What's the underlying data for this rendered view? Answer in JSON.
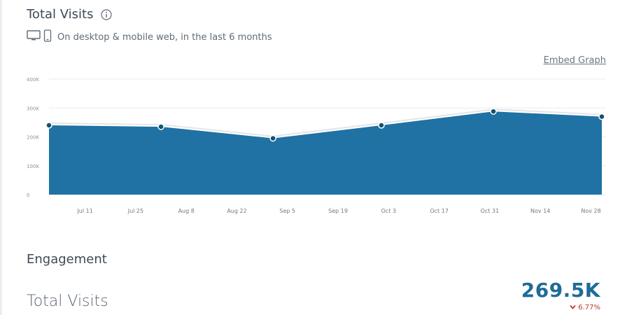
{
  "header": {
    "title": "Total Visits",
    "subtitle": "On desktop & mobile web, in the last 6 months",
    "embed_label": "Embed Graph"
  },
  "icons": {
    "info": "info-icon",
    "desktop": "desktop-icon",
    "mobile": "mobile-icon",
    "change": "chevron-down-icon"
  },
  "colors": {
    "area_fill": "#1f72a3",
    "point_fill": "#14506f",
    "value_text": "#1f6b99",
    "decrease": "#c0392b"
  },
  "chart_data": {
    "type": "area",
    "title": "",
    "xlabel": "",
    "ylabel": "",
    "ylim": [
      0,
      400000
    ],
    "yticks": [
      {
        "value": 0,
        "label": "0"
      },
      {
        "value": 100000,
        "label": "100K"
      },
      {
        "value": 200000,
        "label": "200K"
      },
      {
        "value": 300000,
        "label": "300K"
      },
      {
        "value": 400000,
        "label": "400K"
      }
    ],
    "xticks": [
      "Jul 11",
      "Jul 25",
      "Aug 8",
      "Aug 22",
      "Sep 5",
      "Sep 19",
      "Oct 3",
      "Oct 17",
      "Oct 31",
      "Nov 14",
      "Nov 28"
    ],
    "grid": true,
    "legend": "none",
    "series": [
      {
        "points": [
          {
            "x": "Jul 1",
            "y": 240000
          },
          {
            "x": "Aug 1",
            "y": 235000
          },
          {
            "x": "Sep 1",
            "y": 195000
          },
          {
            "x": "Oct 1",
            "y": 240000
          },
          {
            "x": "Nov 1",
            "y": 288000
          },
          {
            "x": "Dec 1",
            "y": 270000
          }
        ]
      }
    ]
  },
  "engagement": {
    "section_title": "Engagement",
    "metric_label": "Total Visits",
    "metric_value": "269.5K",
    "metric_change": "6.77%"
  }
}
